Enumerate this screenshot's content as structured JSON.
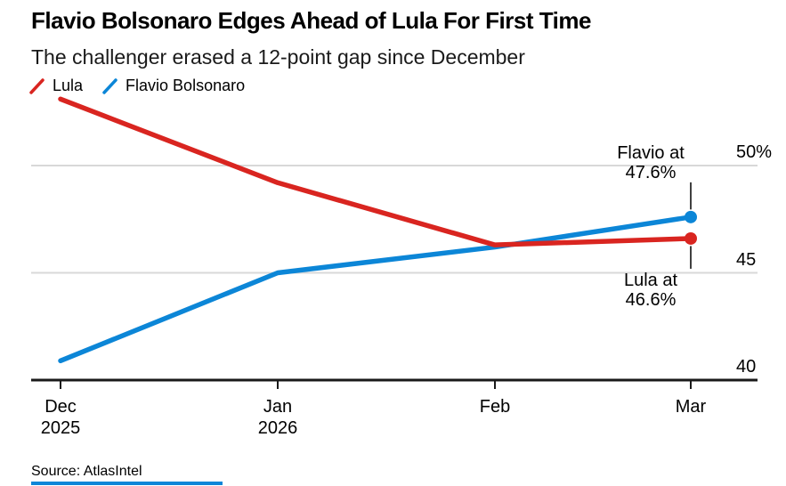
{
  "header": {
    "title": "Flavio Bolsonaro Edges Ahead of Lula For First Time",
    "subtitle": "The challenger erased a 12-point gap since December"
  },
  "legend": [
    {
      "label": "Lula",
      "color": "#d92520"
    },
    {
      "label": "Flavio Bolsonaro",
      "color": "#0c86d7"
    }
  ],
  "chart_data": {
    "type": "line",
    "categories": [
      "Dec",
      "Jan",
      "Feb",
      "Mar"
    ],
    "category_sublabels": [
      "2025",
      "2026",
      "",
      ""
    ],
    "series": [
      {
        "name": "Lula",
        "color": "#d92520",
        "values": [
          53.1,
          49.2,
          46.3,
          46.6
        ]
      },
      {
        "name": "Flavio Bolsonaro",
        "color": "#0c86d7",
        "values": [
          40.9,
          45.0,
          46.2,
          47.6
        ]
      }
    ],
    "ylim": [
      40,
      53.5
    ],
    "yticks": [
      {
        "value": 50,
        "label": "50%"
      },
      {
        "value": 45,
        "label": "45"
      },
      {
        "value": 40,
        "label": "40"
      }
    ],
    "grid": "horizontal",
    "legend_position": "top-left",
    "end_markers": true,
    "annotations": [
      {
        "lines": [
          "Flavio at",
          "47.6%"
        ],
        "series": "Flavio Bolsonaro",
        "category": "Mar",
        "placement": "above"
      },
      {
        "lines": [
          "Lula at",
          "46.6%"
        ],
        "series": "Lula",
        "category": "Mar",
        "placement": "below"
      }
    ]
  },
  "footer": {
    "source": "Source: AtlasIntel"
  },
  "colors": {
    "lula": "#d92520",
    "flavio": "#0c86d7",
    "grid": "#d8d8d8",
    "axis": "#1a1a1a",
    "connector": "#000000",
    "footer_bar": "#0e86d8"
  }
}
